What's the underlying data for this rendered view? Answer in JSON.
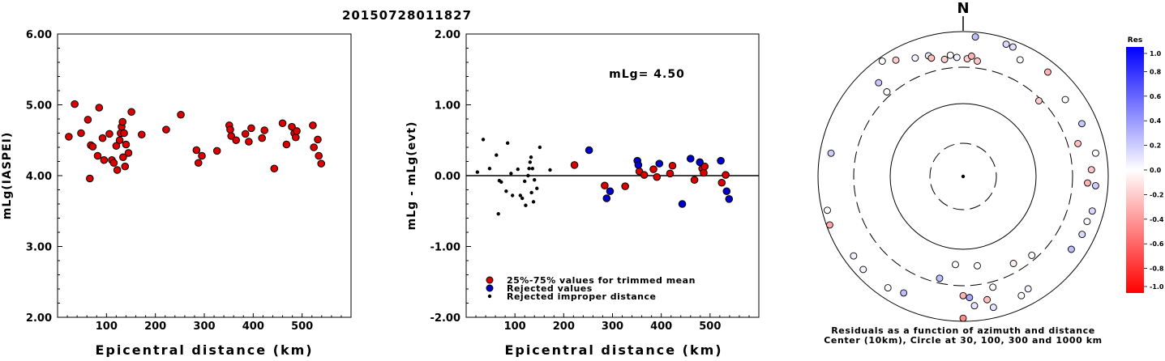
{
  "figure_title": "20150728011827",
  "chart_data": [
    {
      "type": "scatter",
      "xlabel": "Epicentral distance (km)",
      "ylabel": "mLg(IASPEI)",
      "xlim": [
        0,
        600
      ],
      "ylim": [
        2.0,
        6.0
      ],
      "xticks": [
        "100",
        "200",
        "300",
        "400",
        "500"
      ],
      "yticks": [
        "2.00",
        "3.00",
        "4.00",
        "5.00",
        "6.00"
      ],
      "grid": false,
      "points": [
        {
          "x": 23,
          "y": 4.55
        },
        {
          "x": 35,
          "y": 5.01
        },
        {
          "x": 48,
          "y": 4.6
        },
        {
          "x": 62,
          "y": 4.79
        },
        {
          "x": 66,
          "y": 3.96
        },
        {
          "x": 68,
          "y": 4.43
        },
        {
          "x": 72,
          "y": 4.41
        },
        {
          "x": 82,
          "y": 4.28
        },
        {
          "x": 85,
          "y": 4.96
        },
        {
          "x": 92,
          "y": 4.53
        },
        {
          "x": 95,
          "y": 4.22
        },
        {
          "x": 106,
          "y": 4.59
        },
        {
          "x": 111,
          "y": 4.22
        },
        {
          "x": 115,
          "y": 4.18
        },
        {
          "x": 120,
          "y": 4.42
        },
        {
          "x": 122,
          "y": 4.08
        },
        {
          "x": 127,
          "y": 4.5
        },
        {
          "x": 129,
          "y": 4.6
        },
        {
          "x": 131,
          "y": 4.69
        },
        {
          "x": 133,
          "y": 4.76
        },
        {
          "x": 134,
          "y": 4.26
        },
        {
          "x": 136,
          "y": 4.6
        },
        {
          "x": 138,
          "y": 4.13
        },
        {
          "x": 140,
          "y": 4.44
        },
        {
          "x": 145,
          "y": 4.32
        },
        {
          "x": 151,
          "y": 4.9
        },
        {
          "x": 172,
          "y": 4.58
        },
        {
          "x": 222,
          "y": 4.65
        },
        {
          "x": 252,
          "y": 4.86
        },
        {
          "x": 284,
          "y": 4.36
        },
        {
          "x": 288,
          "y": 4.18
        },
        {
          "x": 295,
          "y": 4.28
        },
        {
          "x": 326,
          "y": 4.35
        },
        {
          "x": 351,
          "y": 4.71
        },
        {
          "x": 353,
          "y": 4.65
        },
        {
          "x": 355,
          "y": 4.56
        },
        {
          "x": 365,
          "y": 4.5
        },
        {
          "x": 384,
          "y": 4.59
        },
        {
          "x": 391,
          "y": 4.48
        },
        {
          "x": 396,
          "y": 4.67
        },
        {
          "x": 418,
          "y": 4.53
        },
        {
          "x": 423,
          "y": 4.64
        },
        {
          "x": 443,
          "y": 4.1
        },
        {
          "x": 460,
          "y": 4.74
        },
        {
          "x": 468,
          "y": 4.44
        },
        {
          "x": 479,
          "y": 4.69
        },
        {
          "x": 484,
          "y": 4.6
        },
        {
          "x": 487,
          "y": 4.54
        },
        {
          "x": 489,
          "y": 4.63
        },
        {
          "x": 522,
          "y": 4.71
        },
        {
          "x": 524,
          "y": 4.4
        },
        {
          "x": 532,
          "y": 4.51
        },
        {
          "x": 534,
          "y": 4.28
        },
        {
          "x": 539,
          "y": 4.17
        }
      ]
    },
    {
      "type": "scatter",
      "xlabel": "Epicentral distance (km)",
      "ylabel": "mLg - mLg(evt)",
      "xlim": [
        0,
        600
      ],
      "ylim": [
        -2.0,
        2.0
      ],
      "xticks": [
        "100",
        "200",
        "300",
        "400",
        "500"
      ],
      "yticks": [
        "-2.00",
        "-1.00",
        "0.00",
        "1.00",
        "2.00"
      ],
      "zero_line": true,
      "annotation": "mLg= 4.50",
      "legend": [
        "25%-75% values for trimmed mean",
        "Rejected values",
        "Rejected improper distance"
      ],
      "legend_position": "bottom-left",
      "series": [
        {
          "name": "25%-75% values for trimmed mean",
          "color": "#dd0000",
          "points": [
            {
              "x": 222,
              "y": 0.15
            },
            {
              "x": 284,
              "y": -0.14
            },
            {
              "x": 326,
              "y": -0.15
            },
            {
              "x": 355,
              "y": 0.06
            },
            {
              "x": 365,
              "y": 0.01
            },
            {
              "x": 384,
              "y": 0.09
            },
            {
              "x": 391,
              "y": -0.02
            },
            {
              "x": 418,
              "y": 0.03
            },
            {
              "x": 423,
              "y": 0.14
            },
            {
              "x": 468,
              "y": -0.06
            },
            {
              "x": 484,
              "y": 0.1
            },
            {
              "x": 487,
              "y": 0.04
            },
            {
              "x": 489,
              "y": 0.13
            },
            {
              "x": 524,
              "y": -0.1
            },
            {
              "x": 532,
              "y": 0.01
            }
          ]
        },
        {
          "name": "Rejected values",
          "color": "#0000cc",
          "points": [
            {
              "x": 252,
              "y": 0.36
            },
            {
              "x": 288,
              "y": -0.32
            },
            {
              "x": 295,
              "y": -0.22
            },
            {
              "x": 351,
              "y": 0.21
            },
            {
              "x": 353,
              "y": 0.15
            },
            {
              "x": 396,
              "y": 0.17
            },
            {
              "x": 443,
              "y": -0.4
            },
            {
              "x": 460,
              "y": 0.24
            },
            {
              "x": 479,
              "y": 0.19
            },
            {
              "x": 522,
              "y": 0.21
            },
            {
              "x": 534,
              "y": -0.22
            },
            {
              "x": 539,
              "y": -0.33
            }
          ]
        },
        {
          "name": "Rejected improper distance",
          "color": "#000000",
          "points": [
            {
              "x": 23,
              "y": 0.05
            },
            {
              "x": 35,
              "y": 0.51
            },
            {
              "x": 48,
              "y": 0.1
            },
            {
              "x": 62,
              "y": 0.29
            },
            {
              "x": 66,
              "y": -0.54
            },
            {
              "x": 68,
              "y": -0.07
            },
            {
              "x": 72,
              "y": -0.09
            },
            {
              "x": 82,
              "y": -0.22
            },
            {
              "x": 85,
              "y": 0.46
            },
            {
              "x": 92,
              "y": 0.03
            },
            {
              "x": 95,
              "y": -0.28
            },
            {
              "x": 106,
              "y": 0.09
            },
            {
              "x": 111,
              "y": -0.28
            },
            {
              "x": 115,
              "y": -0.32
            },
            {
              "x": 120,
              "y": -0.08
            },
            {
              "x": 122,
              "y": -0.42
            },
            {
              "x": 127,
              "y": 0.0
            },
            {
              "x": 129,
              "y": 0.1
            },
            {
              "x": 131,
              "y": 0.19
            },
            {
              "x": 133,
              "y": 0.26
            },
            {
              "x": 134,
              "y": -0.24
            },
            {
              "x": 136,
              "y": 0.1
            },
            {
              "x": 138,
              "y": -0.37
            },
            {
              "x": 140,
              "y": -0.06
            },
            {
              "x": 145,
              "y": -0.18
            },
            {
              "x": 151,
              "y": 0.4
            },
            {
              "x": 172,
              "y": 0.08
            }
          ]
        }
      ]
    },
    {
      "type": "scatter",
      "subtype": "polar residual map",
      "north_label": "N",
      "caption": [
        "Residuals as a function of azimuth and distance",
        "Center (10km), Circle at 30, 100, 300 and 1000 km"
      ],
      "rings_km": [
        30,
        100,
        300,
        1000
      ],
      "center_km": 10,
      "colorbar_title": "Res",
      "colorbar_ticks": [
        "1.0",
        "0.8",
        "0.6",
        "0.4",
        "0.2",
        "0.0",
        "-0.2",
        "-0.4",
        "-0.6",
        "-0.8",
        "-1.0"
      ],
      "colorbar_range": [
        -1.0,
        1.0
      ],
      "colors": {
        "positive": "#0000ff",
        "negative": "#ff0000",
        "zero": "#ffffff"
      },
      "stations": [
        {
          "azimuth": 5,
          "distance_km": 850,
          "residual": 0.25
        },
        {
          "azimuth": 18,
          "distance_km": 820,
          "residual": 0.15
        },
        {
          "azimuth": 21,
          "distance_km": 810,
          "residual": 0.12
        },
        {
          "azimuth": 26,
          "distance_km": 600,
          "residual": 0.0
        },
        {
          "azimuth": 39,
          "distance_km": 700,
          "residual": -0.3
        },
        {
          "azimuth": 45,
          "distance_km": 280,
          "residual": -0.2
        },
        {
          "azimuth": 53,
          "distance_km": 560,
          "residual": 0.0
        },
        {
          "azimuth": 66,
          "distance_km": 600,
          "residual": 0.22
        },
        {
          "azimuth": 74,
          "distance_km": 420,
          "residual": -0.25
        },
        {
          "azimuth": 80,
          "distance_km": 700,
          "residual": 0.0
        },
        {
          "azimuth": 87,
          "distance_km": 570,
          "residual": -0.22
        },
        {
          "azimuth": 94,
          "distance_km": 660,
          "residual": 0.2
        },
        {
          "azimuth": 93,
          "distance_km": 500,
          "residual": -0.3
        },
        {
          "azimuth": 105,
          "distance_km": 680,
          "residual": 0.15
        },
        {
          "azimuth": 110,
          "distance_km": 640,
          "residual": 0.02
        },
        {
          "azimuth": 116,
          "distance_km": 650,
          "residual": 0.15
        },
        {
          "azimuth": 124,
          "distance_km": 610,
          "residual": 0.25
        },
        {
          "azimuth": 139,
          "distance_km": 260,
          "residual": 0.0
        },
        {
          "azimuth": 150,
          "distance_km": 600,
          "residual": 0.05
        },
        {
          "azimuth": 150,
          "distance_km": 230,
          "residual": -0.05
        },
        {
          "azimuth": 154,
          "distance_km": 660,
          "residual": 0.0
        },
        {
          "azimuth": 167,
          "distance_km": 700,
          "residual": 0.1
        },
        {
          "azimuth": 165,
          "distance_km": 360,
          "residual": 0.0
        },
        {
          "azimuth": 169,
          "distance_km": 520,
          "residual": -0.25
        },
        {
          "azimuth": 171,
          "distance_km": 170,
          "residual": 0.0
        },
        {
          "azimuth": 175,
          "distance_km": 600,
          "residual": 0.1
        },
        {
          "azimuth": 177,
          "distance_km": 450,
          "residual": 0.35
        },
        {
          "azimuth": 185,
          "distance_km": 160,
          "residual": 0.0
        },
        {
          "azimuth": 193,
          "distance_km": 260,
          "residual": 0.25
        },
        {
          "azimuth": 180,
          "distance_km": 900,
          "residual": -0.45
        },
        {
          "azimuth": 180,
          "distance_km": 420,
          "residual": -0.3
        },
        {
          "azimuth": 207,
          "distance_km": 620,
          "residual": 0.25
        },
        {
          "azimuth": 214,
          "distance_km": 700,
          "residual": 0.0
        },
        {
          "azimuth": 227,
          "distance_km": 750,
          "residual": 0.05
        },
        {
          "azimuth": 234,
          "distance_km": 720,
          "residual": 0.05
        },
        {
          "azimuth": 250,
          "distance_km": 900,
          "residual": -0.35
        },
        {
          "azimuth": 256,
          "distance_km": 840,
          "residual": 0.0
        },
        {
          "azimuth": 280,
          "distance_km": 690,
          "residual": 0.2
        },
        {
          "azimuth": 318,
          "distance_km": 350,
          "residual": 0.0
        },
        {
          "azimuth": 318,
          "distance_km": 530,
          "residual": 0.22
        },
        {
          "azimuth": 325,
          "distance_km": 870,
          "residual": 0.0
        },
        {
          "azimuth": 330,
          "distance_km": 700,
          "residual": -0.2
        },
        {
          "azimuth": 338,
          "distance_km": 560,
          "residual": 0.05
        },
        {
          "azimuth": 344,
          "distance_km": 520,
          "residual": 0.1
        },
        {
          "azimuth": 345,
          "distance_km": 470,
          "residual": -0.25
        },
        {
          "azimuth": 351,
          "distance_km": 410,
          "residual": -0.18
        },
        {
          "azimuth": 354,
          "distance_km": 460,
          "residual": 0.0
        },
        {
          "azimuth": 2,
          "distance_km": 400,
          "residual": -0.18
        },
        {
          "azimuth": 7,
          "distance_km": 380,
          "residual": -0.22
        },
        {
          "azimuth": 4,
          "distance_km": 440,
          "residual": -0.3
        },
        {
          "azimuth": 357,
          "distance_km": 420,
          "residual": 0.05
        }
      ]
    }
  ]
}
